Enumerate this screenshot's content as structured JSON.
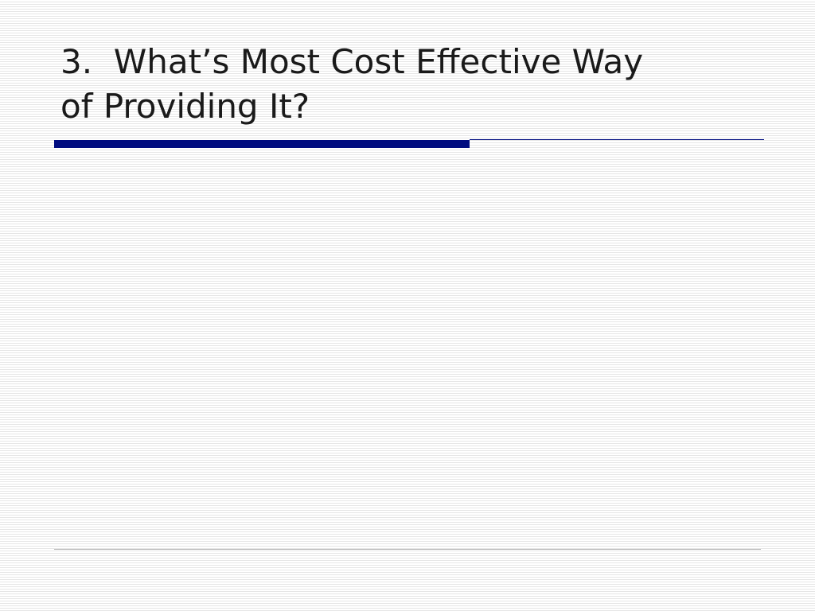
{
  "slide": {
    "title_line1": "3.  What’s Most Cost Effective Way",
    "title_line2": "of Providing It?",
    "accent_color": "#000c80"
  }
}
